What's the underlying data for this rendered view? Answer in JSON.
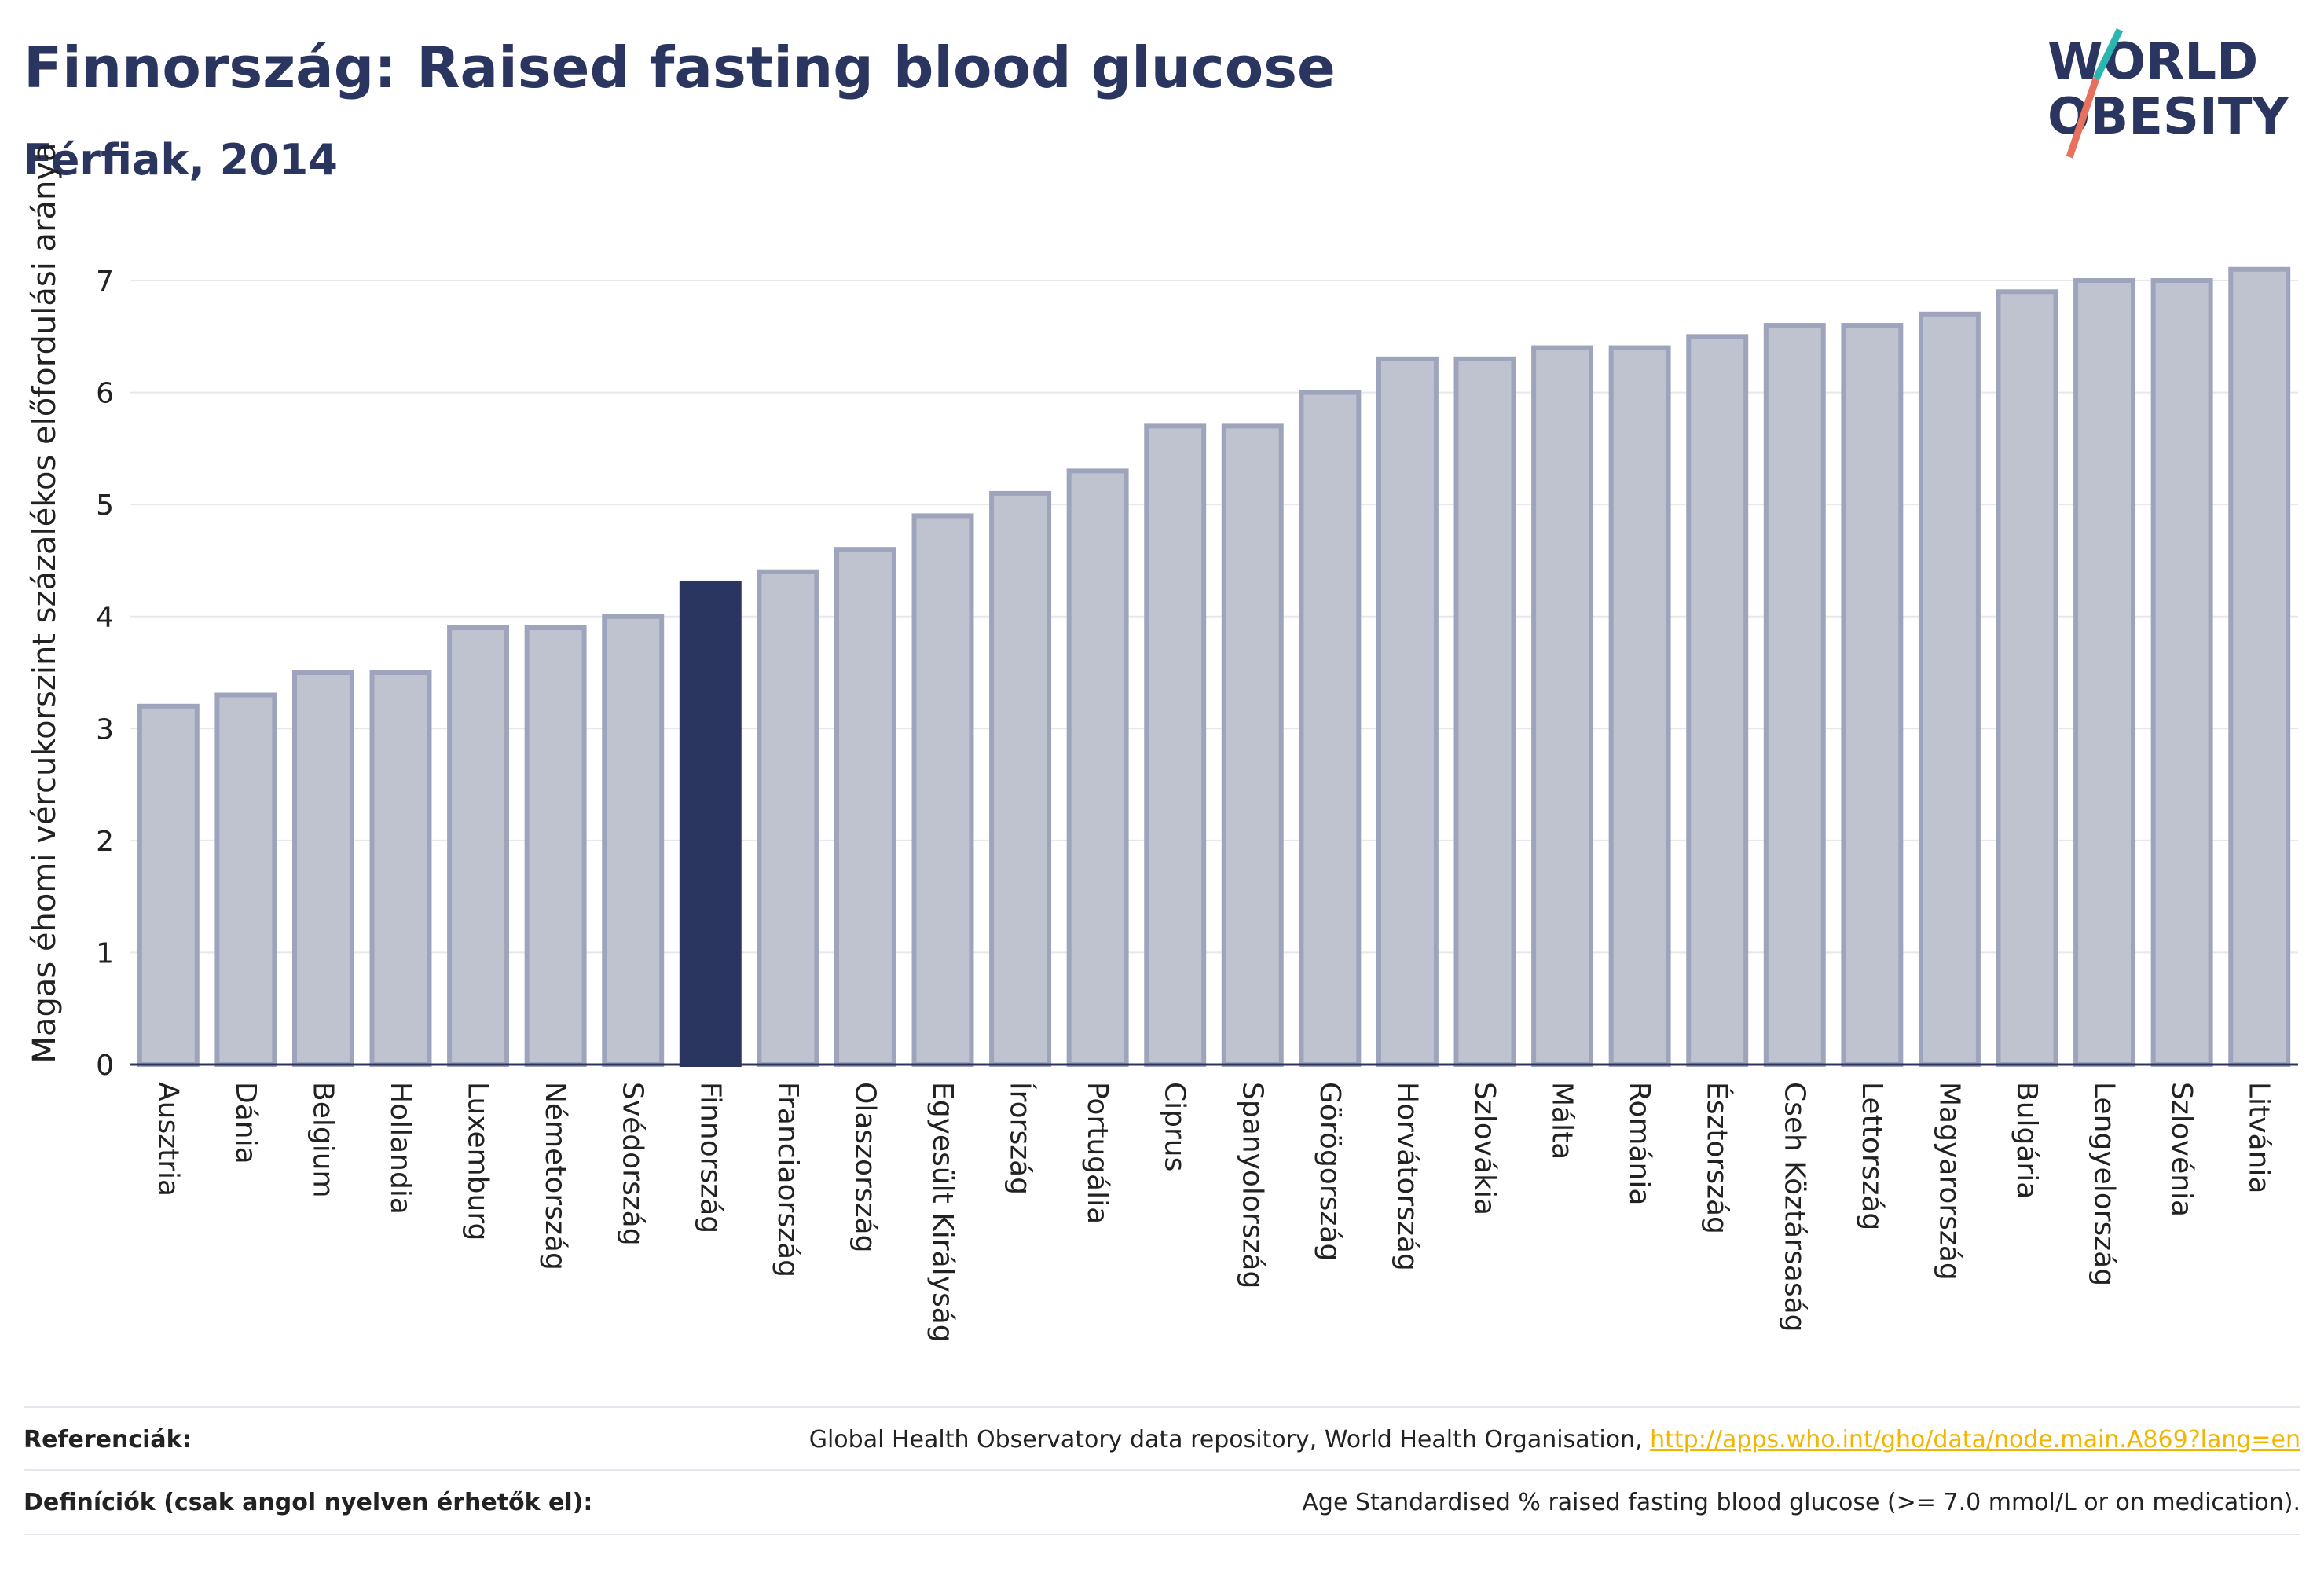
{
  "header": {
    "title": "Finnország: Raised fasting blood glucose",
    "subtitle": "Férfiak, 2014"
  },
  "logo": {
    "line1": "WORLD",
    "line2": "OBESITY"
  },
  "chart_data": {
    "type": "bar",
    "title": "Finnország: Raised fasting blood glucose",
    "subtitle": "Férfiak, 2014",
    "xlabel": "",
    "ylabel": "Magas éhomi vércukorszint százalékos előfordulási aránya",
    "ylim": [
      0,
      7.4
    ],
    "yticks": [
      0,
      1,
      2,
      3,
      4,
      5,
      6,
      7
    ],
    "grid": true,
    "legend": "none",
    "highlight": "Finnország",
    "colors": {
      "bar": "#bfc3d0",
      "bar_border": "#9ea4bb",
      "highlight": "#2a3560"
    },
    "categories": [
      "Ausztria",
      "Dánia",
      "Belgium",
      "Hollandia",
      "Luxemburg",
      "Németország",
      "Svédország",
      "Finnország",
      "Franciaország",
      "Olaszország",
      "Egyesült Királyság",
      "Írország",
      "Portugália",
      "Ciprus",
      "Spanyolország",
      "Görögország",
      "Horvátország",
      "Szlovákia",
      "Málta",
      "Románia",
      "Észtország",
      "Cseh Köztársaság",
      "Lettország",
      "Magyarország",
      "Bulgária",
      "Lengyelország",
      "Szlovénia",
      "Litvánia"
    ],
    "values": [
      3.2,
      3.3,
      3.5,
      3.5,
      3.9,
      3.9,
      4.0,
      4.3,
      4.4,
      4.6,
      4.9,
      5.1,
      5.3,
      5.7,
      5.7,
      6.0,
      6.3,
      6.3,
      6.4,
      6.4,
      6.5,
      6.6,
      6.6,
      6.7,
      6.9,
      7.0,
      7.0,
      7.1
    ]
  },
  "footer": {
    "references_label": "Referenciák:",
    "references_text": "Global Health Observatory data repository, World Health Organisation, ",
    "references_link": "http://apps.who.int/gho/data/node.main.A869?lang=en",
    "definitions_label": "Definíciók (csak angol nyelven érhetők el):",
    "definitions_text": "Age Standardised % raised fasting blood glucose (>= 7.0 mmol/L or on medication)."
  }
}
